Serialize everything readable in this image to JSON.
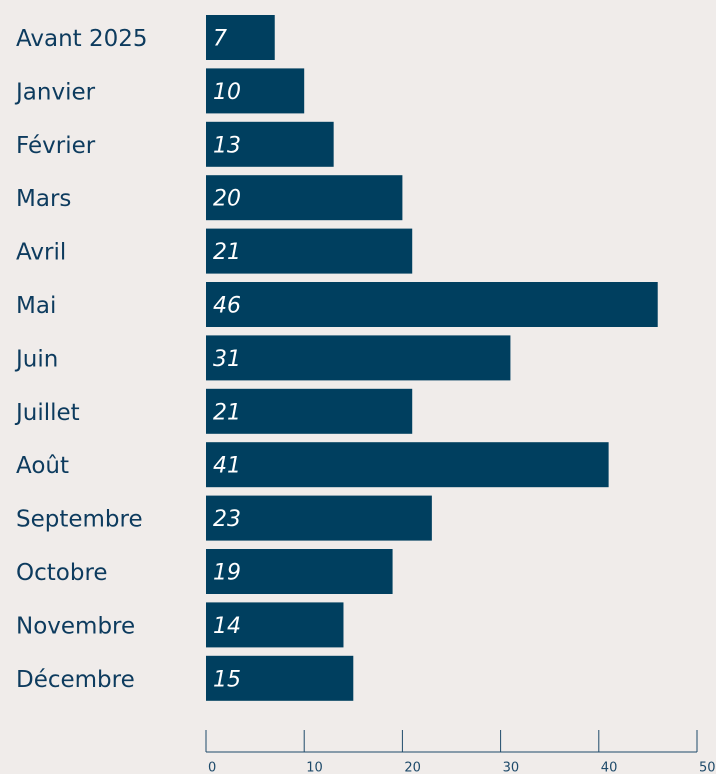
{
  "chart_data": {
    "type": "bar",
    "orientation": "horizontal",
    "categories": [
      "Avant 2025",
      "Janvier",
      "Février",
      "Mars",
      "Avril",
      "Mai",
      "Juin",
      "Juillet",
      "Août",
      "Septembre",
      "Octobre",
      "Novembre",
      "Décembre"
    ],
    "values": [
      7,
      10,
      13,
      20,
      21,
      46,
      31,
      21,
      41,
      23,
      19,
      14,
      15
    ],
    "color": "#003f5f",
    "xlim": [
      0,
      50
    ],
    "xticks": [
      0,
      10,
      20,
      30,
      40,
      50
    ]
  }
}
